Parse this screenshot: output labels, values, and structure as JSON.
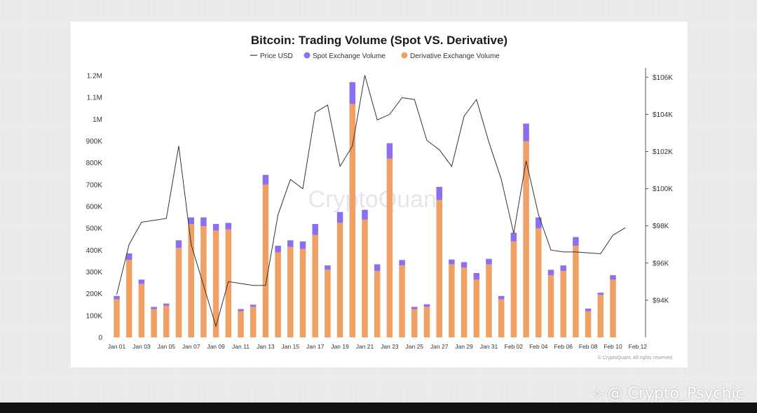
{
  "page": {
    "colors": {
      "background": "#ecebe9",
      "card": "#ffffff",
      "bottom_bar": "#111111"
    }
  },
  "chart_data": {
    "type": "bar",
    "title": "Bitcoin: Trading Volume (Spot VS. Derivative)",
    "legend": {
      "placement": "top-center",
      "items": [
        {
          "label": "Price USD",
          "marker": "line",
          "color": "#333333"
        },
        {
          "label": "Spot Exchange Volume",
          "marker": "dot",
          "color": "#8b6ff0"
        },
        {
          "label": "Derivative Exchange Volume",
          "marker": "dot",
          "color": "#f0a065"
        }
      ]
    },
    "stacked": true,
    "grid": false,
    "left_axis": {
      "ticks": [
        0,
        100000,
        200000,
        300000,
        400000,
        500000,
        600000,
        700000,
        800000,
        900000,
        1000000,
        1100000,
        1200000
      ],
      "tick_labels": [
        "0",
        "100K",
        "200K",
        "300K",
        "400K",
        "500K",
        "600K",
        "700K",
        "800K",
        "900K",
        "1M",
        "1.1M",
        "1.2M"
      ],
      "ylim": [
        0,
        1200000
      ]
    },
    "right_axis": {
      "ticks": [
        94000,
        96000,
        98000,
        100000,
        102000,
        104000,
        106000
      ],
      "tick_labels": [
        "$94K",
        "$96K",
        "$98K",
        "$100K",
        "$102K",
        "$104K",
        "$106K"
      ],
      "ylim": [
        92000,
        106500
      ]
    },
    "x_tick_labels": [
      "Jan 01",
      "Jan 03",
      "Jan 05",
      "Jan 07",
      "Jan 09",
      "Jan 11",
      "Jan 13",
      "Jan 15",
      "Jan 17",
      "Jan 19",
      "Jan 21",
      "Jan 23",
      "Jan 25",
      "Jan 27",
      "Jan 29",
      "Jan 31",
      "Feb 02",
      "Feb 04",
      "Feb 06",
      "Feb 08",
      "Feb 10",
      "Feb 12"
    ],
    "x_tick_days": [
      0,
      2,
      4,
      6,
      8,
      10,
      12,
      14,
      16,
      18,
      20,
      22,
      24,
      26,
      28,
      30,
      32,
      34,
      36,
      38,
      40,
      42
    ],
    "days": [
      "Jan 01",
      "Jan 02",
      "Jan 03",
      "Jan 04",
      "Jan 05",
      "Jan 06",
      "Jan 07",
      "Jan 08",
      "Jan 09",
      "Jan 10",
      "Jan 11",
      "Jan 12",
      "Jan 13",
      "Jan 14",
      "Jan 15",
      "Jan 16",
      "Jan 17",
      "Jan 18",
      "Jan 19",
      "Jan 20",
      "Jan 21",
      "Jan 22",
      "Jan 23",
      "Jan 24",
      "Jan 25",
      "Jan 26",
      "Jan 27",
      "Jan 28",
      "Jan 29",
      "Jan 30",
      "Jan 31",
      "Feb 01",
      "Feb 02",
      "Feb 03",
      "Feb 04",
      "Feb 05",
      "Feb 06",
      "Feb 07",
      "Feb 08",
      "Feb 09",
      "Feb 10",
      "Feb 11",
      "Feb 12"
    ],
    "series": [
      {
        "name": "Derivative Exchange Volume",
        "color": "#f0a065",
        "values": [
          175000,
          355000,
          245000,
          130000,
          145000,
          410000,
          520000,
          510000,
          490000,
          495000,
          120000,
          140000,
          700000,
          390000,
          415000,
          405000,
          470000,
          310000,
          525000,
          1070000,
          540000,
          305000,
          820000,
          330000,
          130000,
          140000,
          630000,
          335000,
          320000,
          265000,
          335000,
          175000,
          440000,
          900000,
          500000,
          285000,
          305000,
          420000,
          120000,
          195000,
          265000,
          null,
          null
        ]
      },
      {
        "name": "Spot Exchange Volume",
        "color": "#8b6ff0",
        "values": [
          15000,
          30000,
          20000,
          10000,
          10000,
          35000,
          30000,
          40000,
          30000,
          30000,
          10000,
          10000,
          45000,
          30000,
          30000,
          35000,
          50000,
          20000,
          50000,
          100000,
          45000,
          30000,
          70000,
          25000,
          10000,
          12000,
          60000,
          22000,
          25000,
          30000,
          25000,
          15000,
          40000,
          80000,
          50000,
          25000,
          25000,
          40000,
          12000,
          10000,
          20000,
          null,
          null
        ]
      },
      {
        "name": "Price USD",
        "color": "#333333",
        "values": [
          94300,
          97000,
          98200,
          98300,
          98400,
          102300,
          97000,
          94800,
          92600,
          95000,
          94900,
          94800,
          94800,
          98600,
          100500,
          100000,
          104100,
          104500,
          101200,
          102300,
          106100,
          103700,
          104000,
          104900,
          104800,
          102600,
          102100,
          101200,
          103900,
          104800,
          102500,
          100500,
          97600,
          101500,
          98600,
          96700,
          96600,
          96600,
          96550,
          96500,
          97500,
          97900,
          null
        ]
      }
    ],
    "watermark": "CryptoQuant",
    "source_note": "© CryptoQuant. All rights reserved"
  },
  "overlay": {
    "text": "@ Crypto_Psychic",
    "icon": "diamond-logo-icon"
  }
}
